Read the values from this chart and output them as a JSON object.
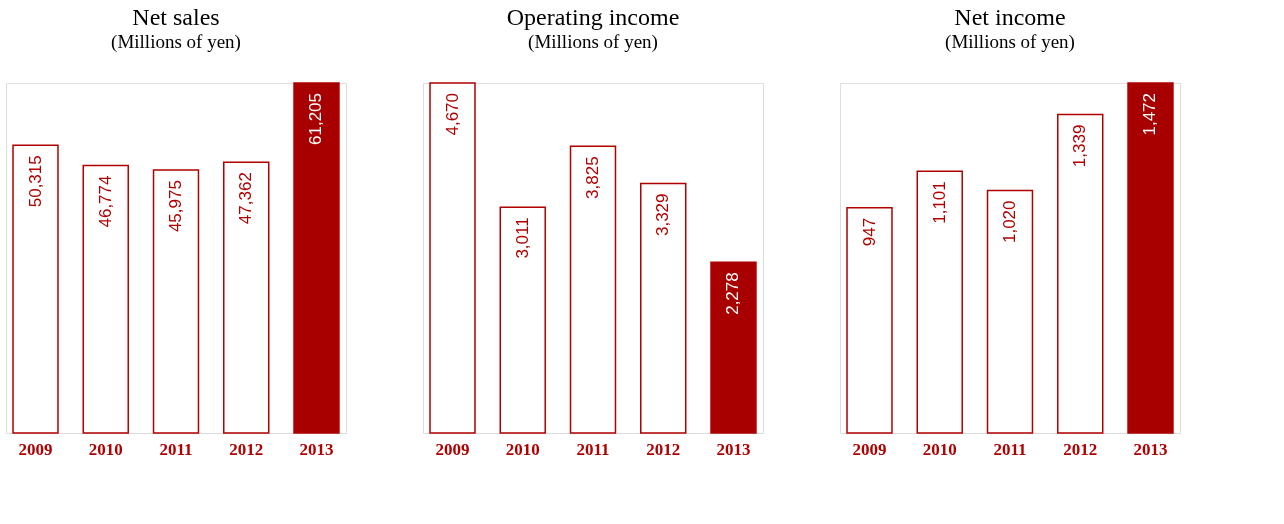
{
  "chart_data": [
    {
      "type": "bar",
      "title": "Net sales",
      "subtitle": "(Millions of yen)",
      "categories": [
        "2009",
        "2010",
        "2011",
        "2012",
        "2013"
      ],
      "values": [
        50315,
        46774,
        45975,
        47362,
        61205
      ],
      "colors": [
        "#ffffff",
        "#ffffff",
        "#ffffff",
        "#ffffff",
        "#a80000"
      ],
      "value_labels": [
        "50,315",
        "46,774",
        "45,975",
        "47,362",
        "61,205"
      ],
      "tick_labels": "x"
    },
    {
      "type": "bar",
      "title": "Operating income",
      "subtitle": "(Millions of yen)",
      "categories": [
        "2009",
        "2010",
        "2011",
        "2012",
        "2013"
      ],
      "values": [
        4670,
        3011,
        3825,
        3329,
        2278
      ],
      "colors": [
        "#ffffff",
        "#ffffff",
        "#ffffff",
        "#ffffff",
        "#a80000"
      ],
      "value_labels": [
        "4,670",
        "3,011",
        "3,825",
        "3,329",
        "2,278"
      ],
      "tick_labels": "x"
    },
    {
      "type": "bar",
      "title": "Net income",
      "subtitle": "(Millions of yen)",
      "categories": [
        "2009",
        "2010",
        "2011",
        "2012",
        "2013"
      ],
      "values": [
        947,
        1101,
        1020,
        1339,
        1472
      ],
      "colors": [
        "#ffffff",
        "#ffffff",
        "#ffffff",
        "#ffffff",
        "#a80000"
      ],
      "value_labels": [
        "947",
        "1,101",
        "1,020",
        "1,339",
        "1,472"
      ],
      "tick_labels": "x"
    }
  ]
}
